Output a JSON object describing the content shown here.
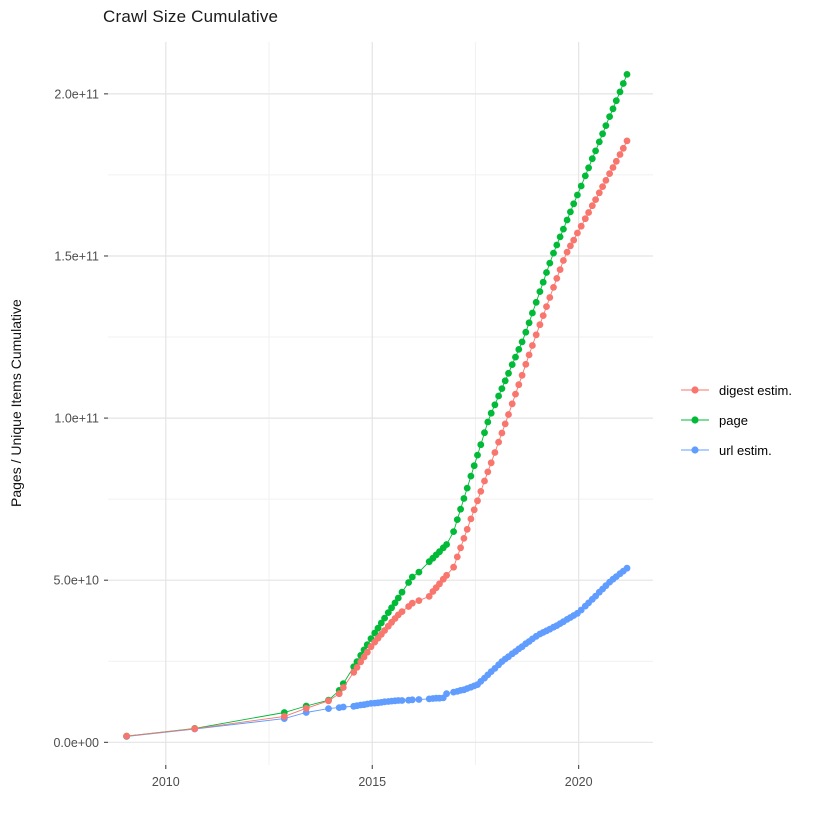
{
  "title": "Crawl Size Cumulative",
  "y_axis_title": "Pages / Unique Items Cumulative",
  "x_axis_title": "",
  "legend": {
    "position": "right",
    "items": [
      {
        "label": "digest estim.",
        "color": "#F8766D"
      },
      {
        "label": "page",
        "color": "#00BA38"
      },
      {
        "label": "url estim.",
        "color": "#619CFF"
      }
    ]
  },
  "style": {
    "background": "#FFFFFF",
    "grid_major": "#E4E4E4",
    "grid_minor": "#F1F1F1",
    "tick_text_color": "#4D4D4D",
    "tick_mark_color": "#333333",
    "point_radius": 3.4
  },
  "chart_data": {
    "type": "line",
    "title": "Crawl Size Cumulative",
    "xlabel": "",
    "ylabel": "Pages / Unique Items Cumulative",
    "grid": "major+minor",
    "legend_position": "right",
    "point_format": "[year, value_in_billions_of_items]",
    "y_value_unit": 1000000000,
    "x_axis": {
      "lim": [
        2008.6,
        2021.8
      ],
      "major_ticks": [
        {
          "value": 2010,
          "label": "2010"
        },
        {
          "value": 2015,
          "label": "2015"
        },
        {
          "value": 2020,
          "label": "2020"
        }
      ],
      "minor_gridlines": [
        2012.5,
        2017.5
      ]
    },
    "y_axis": {
      "lim_billions": [
        -7,
        216
      ],
      "major_ticks": [
        {
          "value_billions": 0,
          "label": "0.0e+00"
        },
        {
          "value_billions": 50,
          "label": "5.0e+10"
        },
        {
          "value_billions": 100,
          "label": "1.0e+11"
        },
        {
          "value_billions": 150,
          "label": "1.5e+11"
        },
        {
          "value_billions": 200,
          "label": "2.0e+11"
        }
      ],
      "minor_gridlines_billions": [
        25,
        75,
        125,
        175
      ]
    },
    "series": [
      {
        "name": "digest estim.",
        "color": "#F8766D",
        "draw_order": 3,
        "points": [
          [
            2009.05,
            1.9
          ],
          [
            2010.7,
            4.2
          ],
          [
            2012.87,
            8.0
          ],
          [
            2013.4,
            10.5
          ],
          [
            2013.94,
            12.8
          ],
          [
            2014.2,
            15.0
          ],
          [
            2014.3,
            16.9
          ],
          [
            2014.55,
            21.6
          ],
          [
            2014.63,
            23.1
          ],
          [
            2014.72,
            24.8
          ],
          [
            2014.8,
            26.3
          ],
          [
            2014.88,
            27.8
          ],
          [
            2014.97,
            29.5
          ],
          [
            2015.06,
            30.9
          ],
          [
            2015.14,
            32.1
          ],
          [
            2015.22,
            33.3
          ],
          [
            2015.3,
            34.5
          ],
          [
            2015.39,
            35.8
          ],
          [
            2015.47,
            37.0
          ],
          [
            2015.55,
            38.2
          ],
          [
            2015.63,
            39.3
          ],
          [
            2015.72,
            40.3
          ],
          [
            2015.88,
            41.9
          ],
          [
            2015.97,
            42.9
          ],
          [
            2016.13,
            43.7
          ],
          [
            2016.38,
            45.0
          ],
          [
            2016.47,
            46.5
          ],
          [
            2016.55,
            47.7
          ],
          [
            2016.63,
            48.9
          ],
          [
            2016.72,
            50.3
          ],
          [
            2016.8,
            51.5
          ],
          [
            2016.97,
            54.0
          ],
          [
            2017.06,
            57.2
          ],
          [
            2017.14,
            60.0
          ],
          [
            2017.22,
            62.9
          ],
          [
            2017.3,
            65.7
          ],
          [
            2017.39,
            68.9
          ],
          [
            2017.47,
            71.7
          ],
          [
            2017.55,
            74.5
          ],
          [
            2017.63,
            77.4
          ],
          [
            2017.72,
            80.6
          ],
          [
            2017.8,
            83.4
          ],
          [
            2017.88,
            86.2
          ],
          [
            2017.97,
            89.4
          ],
          [
            2018.06,
            92.6
          ],
          [
            2018.14,
            95.4
          ],
          [
            2018.22,
            98.2
          ],
          [
            2018.3,
            101.1
          ],
          [
            2018.39,
            104.4
          ],
          [
            2018.47,
            107.4
          ],
          [
            2018.55,
            110.3
          ],
          [
            2018.63,
            113.2
          ],
          [
            2018.72,
            116.6
          ],
          [
            2018.8,
            119.5
          ],
          [
            2018.88,
            122.4
          ],
          [
            2018.97,
            125.7
          ],
          [
            2019.06,
            128.8
          ],
          [
            2019.14,
            131.6
          ],
          [
            2019.22,
            134.4
          ],
          [
            2019.3,
            137.2
          ],
          [
            2019.39,
            140.3
          ],
          [
            2019.47,
            143.1
          ],
          [
            2019.55,
            145.8
          ],
          [
            2019.63,
            148.6
          ],
          [
            2019.72,
            151.2
          ],
          [
            2019.8,
            153.1
          ],
          [
            2019.88,
            154.9
          ],
          [
            2019.97,
            157.1
          ],
          [
            2020.06,
            159.2
          ],
          [
            2020.16,
            161.5
          ],
          [
            2020.24,
            163.4
          ],
          [
            2020.33,
            165.5
          ],
          [
            2020.41,
            167.4
          ],
          [
            2020.5,
            169.5
          ],
          [
            2020.58,
            171.4
          ],
          [
            2020.66,
            173.3
          ],
          [
            2020.75,
            175.4
          ],
          [
            2020.83,
            177.3
          ],
          [
            2020.91,
            179.2
          ],
          [
            2021.0,
            181.3
          ],
          [
            2021.08,
            183.2
          ],
          [
            2021.17,
            185.5
          ]
        ]
      },
      {
        "name": "page",
        "color": "#00BA38",
        "draw_order": 2,
        "points": [
          [
            2009.05,
            1.9
          ],
          [
            2010.7,
            4.3
          ],
          [
            2012.87,
            9.2
          ],
          [
            2013.4,
            11.2
          ],
          [
            2013.94,
            13.0
          ],
          [
            2014.2,
            16.0
          ],
          [
            2014.3,
            18.1
          ],
          [
            2014.55,
            23.3
          ],
          [
            2014.63,
            24.9
          ],
          [
            2014.72,
            26.8
          ],
          [
            2014.8,
            28.5
          ],
          [
            2014.88,
            30.1
          ],
          [
            2014.97,
            32.0
          ],
          [
            2015.06,
            33.7
          ],
          [
            2015.14,
            35.2
          ],
          [
            2015.22,
            36.8
          ],
          [
            2015.3,
            38.3
          ],
          [
            2015.39,
            40.0
          ],
          [
            2015.47,
            41.5
          ],
          [
            2015.55,
            43.0
          ],
          [
            2015.63,
            44.5
          ],
          [
            2015.72,
            46.3
          ],
          [
            2015.88,
            49.3
          ],
          [
            2015.97,
            51.0
          ],
          [
            2016.13,
            52.5
          ],
          [
            2016.38,
            55.7
          ],
          [
            2016.47,
            56.8
          ],
          [
            2016.55,
            57.8
          ],
          [
            2016.63,
            58.8
          ],
          [
            2016.72,
            60.0
          ],
          [
            2016.8,
            61.0
          ],
          [
            2016.97,
            65.0
          ],
          [
            2017.06,
            68.7
          ],
          [
            2017.14,
            71.9
          ],
          [
            2017.22,
            75.2
          ],
          [
            2017.3,
            78.4
          ],
          [
            2017.39,
            82.1
          ],
          [
            2017.47,
            85.3
          ],
          [
            2017.55,
            88.6
          ],
          [
            2017.63,
            91.8
          ],
          [
            2017.72,
            95.5
          ],
          [
            2017.8,
            98.8
          ],
          [
            2017.88,
            101.5
          ],
          [
            2017.97,
            104.1
          ],
          [
            2018.06,
            106.8
          ],
          [
            2018.14,
            109.1
          ],
          [
            2018.22,
            111.5
          ],
          [
            2018.3,
            113.8
          ],
          [
            2018.39,
            116.5
          ],
          [
            2018.47,
            118.8
          ],
          [
            2018.55,
            121.2
          ],
          [
            2018.63,
            123.5
          ],
          [
            2018.72,
            126.5
          ],
          [
            2018.8,
            129.4
          ],
          [
            2018.88,
            132.4
          ],
          [
            2018.97,
            135.7
          ],
          [
            2019.06,
            139.0
          ],
          [
            2019.14,
            141.9
          ],
          [
            2019.22,
            144.9
          ],
          [
            2019.3,
            147.8
          ],
          [
            2019.39,
            150.9
          ],
          [
            2019.47,
            153.4
          ],
          [
            2019.55,
            155.9
          ],
          [
            2019.63,
            158.3
          ],
          [
            2019.72,
            161.1
          ],
          [
            2019.8,
            163.6
          ],
          [
            2019.88,
            166.1
          ],
          [
            2019.97,
            168.8
          ],
          [
            2020.06,
            171.6
          ],
          [
            2020.16,
            174.7
          ],
          [
            2020.24,
            177.2
          ],
          [
            2020.33,
            180.0
          ],
          [
            2020.41,
            182.4
          ],
          [
            2020.5,
            185.2
          ],
          [
            2020.58,
            187.7
          ],
          [
            2020.66,
            190.2
          ],
          [
            2020.75,
            193.0
          ],
          [
            2020.83,
            195.4
          ],
          [
            2020.91,
            197.9
          ],
          [
            2021.0,
            200.6
          ],
          [
            2021.08,
            203.2
          ],
          [
            2021.17,
            206.0
          ]
        ]
      },
      {
        "name": "url estim.",
        "color": "#619CFF",
        "draw_order": 1,
        "points": [
          [
            2009.05,
            1.8
          ],
          [
            2010.7,
            4.1
          ],
          [
            2012.87,
            7.3
          ],
          [
            2013.4,
            9.2
          ],
          [
            2013.94,
            10.4
          ],
          [
            2014.2,
            10.7
          ],
          [
            2014.3,
            10.9
          ],
          [
            2014.55,
            11.1
          ],
          [
            2014.63,
            11.3
          ],
          [
            2014.72,
            11.5
          ],
          [
            2014.8,
            11.6
          ],
          [
            2014.88,
            11.8
          ],
          [
            2014.97,
            12.0
          ],
          [
            2015.06,
            12.1
          ],
          [
            2015.14,
            12.2
          ],
          [
            2015.22,
            12.3
          ],
          [
            2015.3,
            12.5
          ],
          [
            2015.39,
            12.6
          ],
          [
            2015.47,
            12.7
          ],
          [
            2015.55,
            12.8
          ],
          [
            2015.63,
            12.9
          ],
          [
            2015.72,
            12.9
          ],
          [
            2015.88,
            13.0
          ],
          [
            2015.97,
            13.1
          ],
          [
            2016.13,
            13.2
          ],
          [
            2016.38,
            13.4
          ],
          [
            2016.47,
            13.5
          ],
          [
            2016.55,
            13.6
          ],
          [
            2016.63,
            13.6
          ],
          [
            2016.72,
            13.7
          ],
          [
            2016.8,
            15.0
          ],
          [
            2016.97,
            15.5
          ],
          [
            2017.06,
            15.7
          ],
          [
            2017.14,
            16.0
          ],
          [
            2017.22,
            16.2
          ],
          [
            2017.3,
            16.6
          ],
          [
            2017.39,
            17.0
          ],
          [
            2017.47,
            17.4
          ],
          [
            2017.55,
            17.8
          ],
          [
            2017.63,
            18.8
          ],
          [
            2017.72,
            19.8
          ],
          [
            2017.8,
            20.8
          ],
          [
            2017.88,
            21.8
          ],
          [
            2017.97,
            22.8
          ],
          [
            2018.06,
            23.9
          ],
          [
            2018.14,
            24.9
          ],
          [
            2018.22,
            25.7
          ],
          [
            2018.3,
            26.4
          ],
          [
            2018.39,
            27.3
          ],
          [
            2018.47,
            28.0
          ],
          [
            2018.55,
            28.8
          ],
          [
            2018.63,
            29.5
          ],
          [
            2018.72,
            30.4
          ],
          [
            2018.8,
            31.1
          ],
          [
            2018.88,
            31.9
          ],
          [
            2018.97,
            32.7
          ],
          [
            2019.06,
            33.4
          ],
          [
            2019.14,
            33.9
          ],
          [
            2019.22,
            34.4
          ],
          [
            2019.3,
            34.9
          ],
          [
            2019.39,
            35.5
          ],
          [
            2019.47,
            36.0
          ],
          [
            2019.55,
            36.6
          ],
          [
            2019.63,
            37.2
          ],
          [
            2019.72,
            37.9
          ],
          [
            2019.8,
            38.5
          ],
          [
            2019.88,
            39.1
          ],
          [
            2019.97,
            39.8
          ],
          [
            2020.06,
            40.8
          ],
          [
            2020.16,
            42.0
          ],
          [
            2020.24,
            43.0
          ],
          [
            2020.33,
            44.1
          ],
          [
            2020.41,
            45.1
          ],
          [
            2020.5,
            46.3
          ],
          [
            2020.58,
            47.3
          ],
          [
            2020.66,
            48.3
          ],
          [
            2020.75,
            49.4
          ],
          [
            2020.83,
            50.3
          ],
          [
            2020.91,
            51.1
          ],
          [
            2021.0,
            52.0
          ],
          [
            2021.08,
            52.8
          ],
          [
            2021.17,
            53.7
          ]
        ]
      }
    ]
  }
}
